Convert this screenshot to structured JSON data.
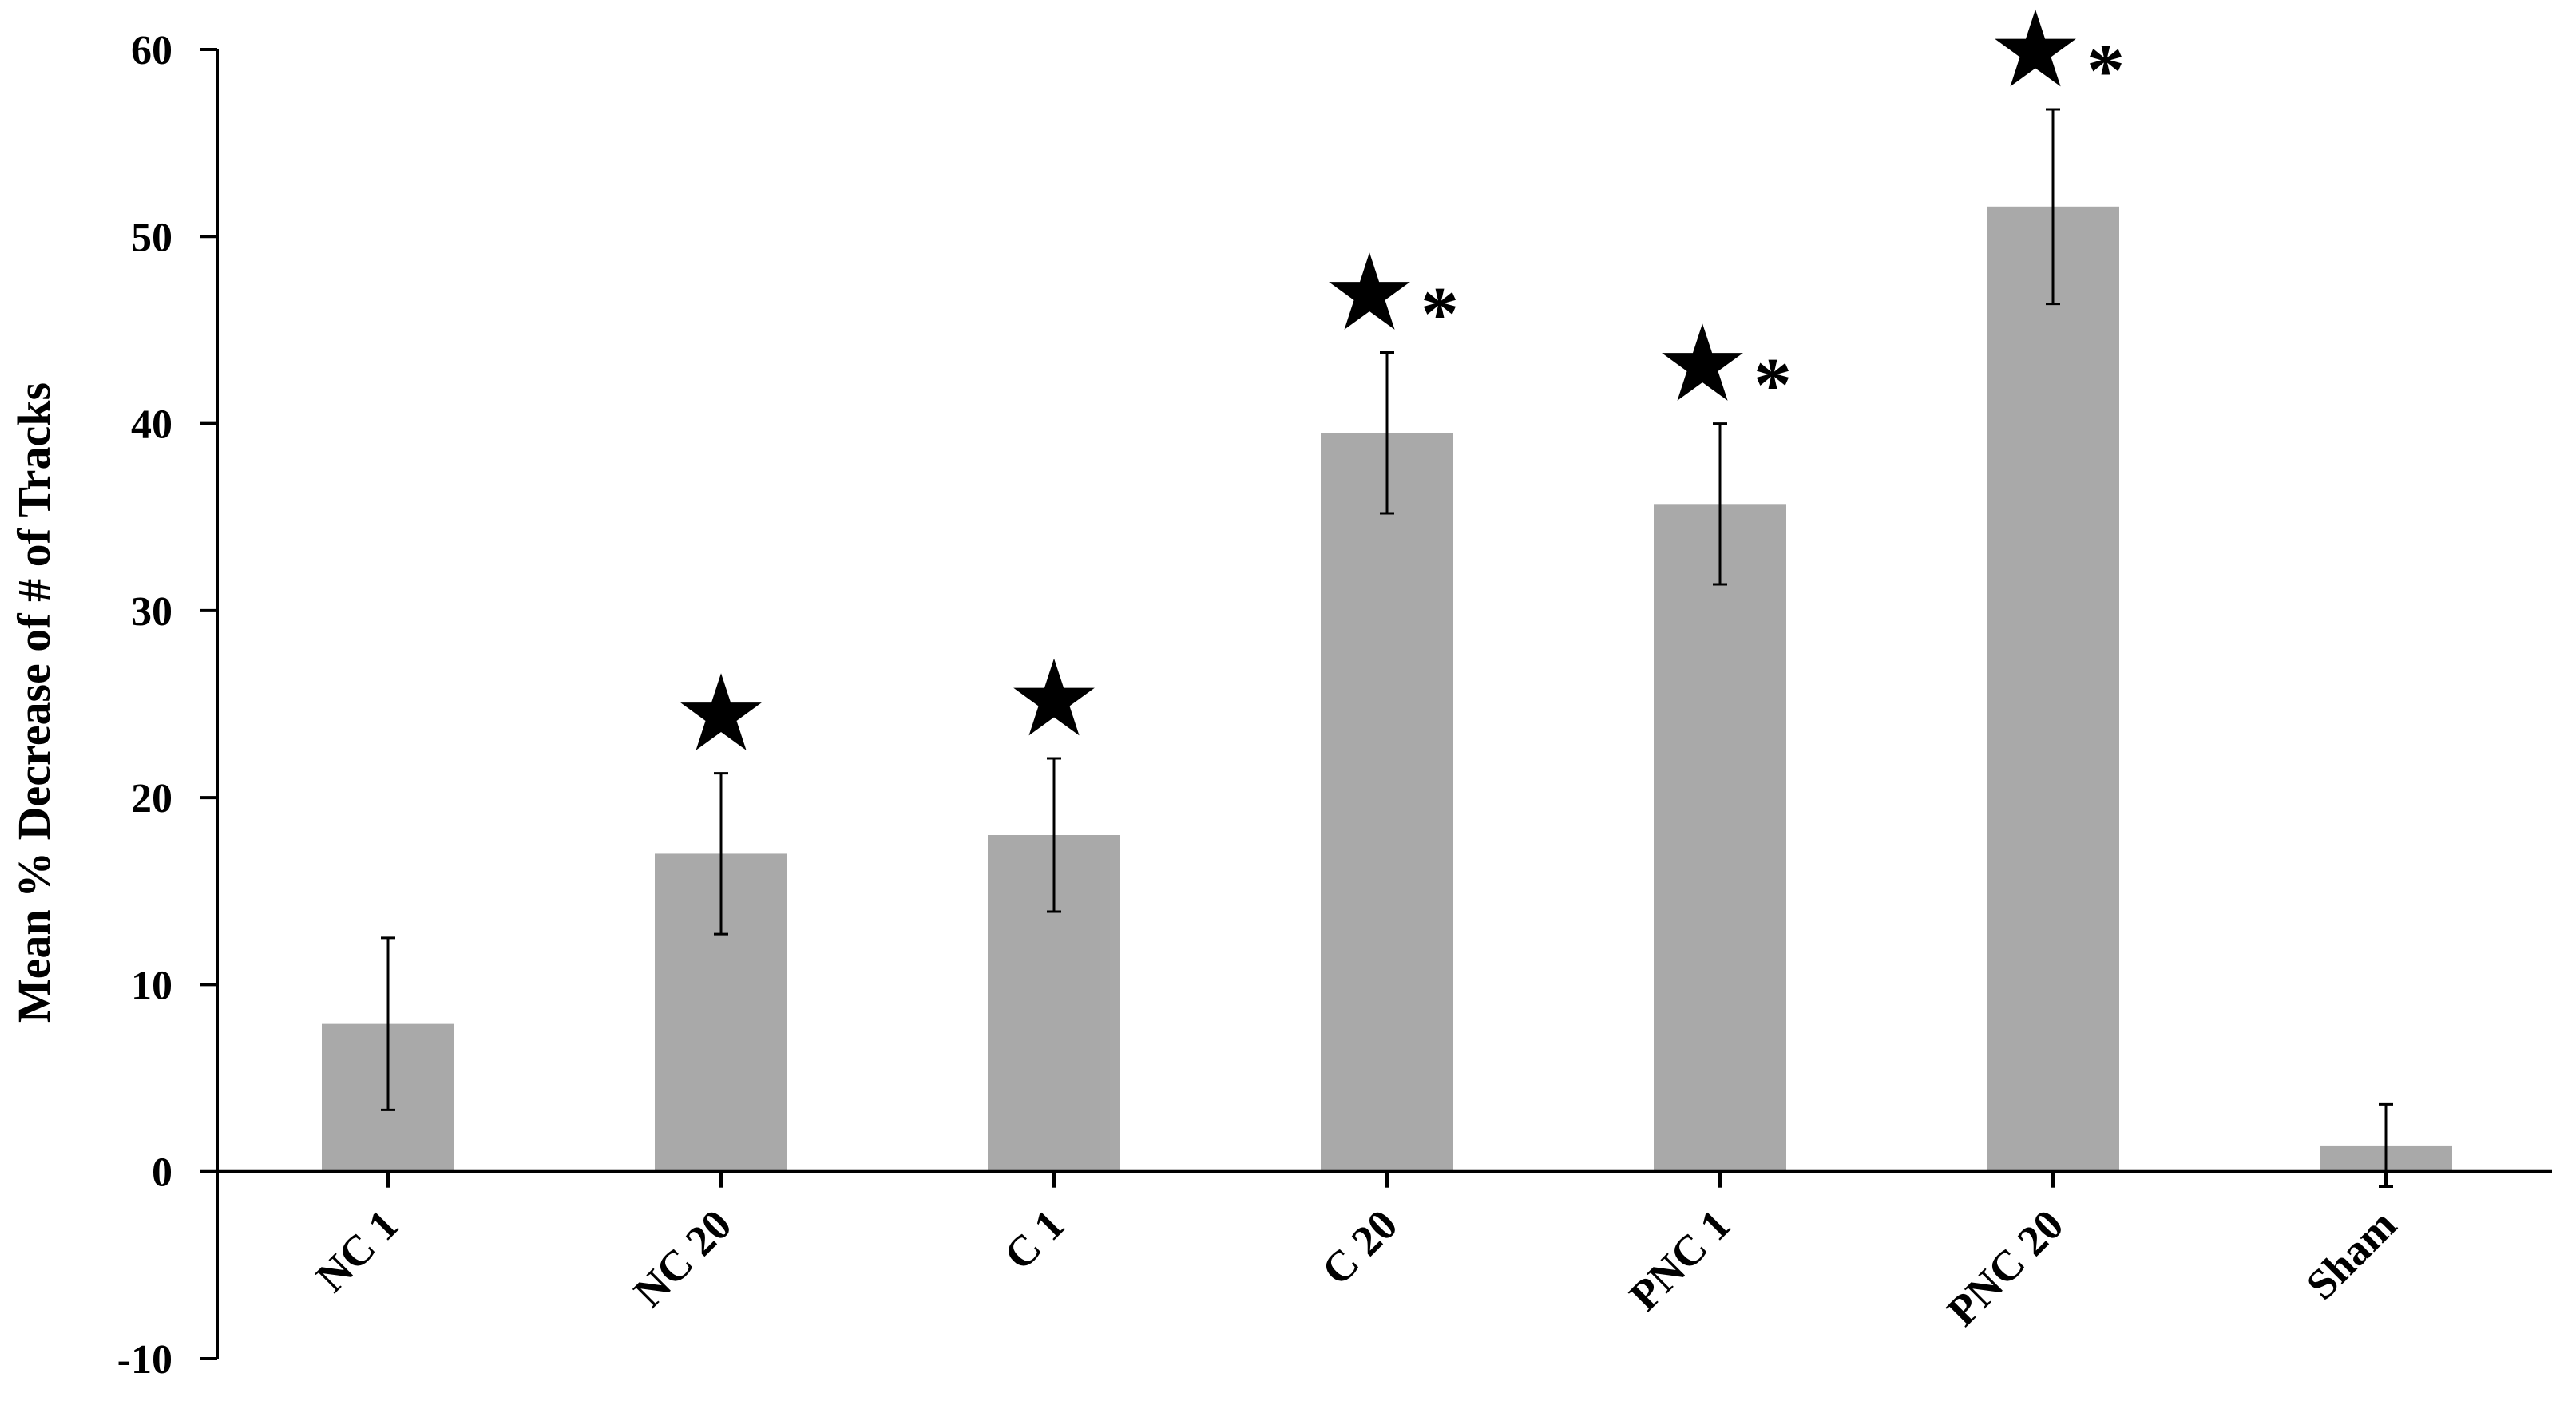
{
  "chart_data": {
    "type": "bar",
    "title": "",
    "xlabel": "",
    "ylabel": "Mean % Decrease of # of Tracks",
    "ylim": [
      -10,
      60
    ],
    "yticks": [
      -10,
      0,
      10,
      20,
      30,
      40,
      50,
      60
    ],
    "grid": false,
    "legend": "none",
    "categories": [
      "NC 1",
      "NC 20",
      "C 1",
      "C 20",
      "PNC 1",
      "PNC 20",
      "Sham"
    ],
    "series": [
      {
        "values": [
          7.9,
          17.0,
          18.0,
          39.5,
          35.7,
          51.6,
          1.4
        ],
        "error": [
          4.6,
          4.3,
          4.1,
          4.3,
          4.3,
          5.2,
          2.2
        ],
        "color": "#a9a9a9"
      }
    ],
    "annotations": [
      {
        "category": "NC 20",
        "marks": [
          "★"
        ]
      },
      {
        "category": "C 1",
        "marks": [
          "★"
        ]
      },
      {
        "category": "C 20",
        "marks": [
          "★",
          "*"
        ]
      },
      {
        "category": "PNC 1",
        "marks": [
          "★",
          "*"
        ]
      },
      {
        "category": "PNC 20",
        "marks": [
          "★",
          "*"
        ]
      }
    ],
    "colors": {
      "bar": "#a9a9a9",
      "axis": "#000000",
      "text": "#000000"
    }
  }
}
